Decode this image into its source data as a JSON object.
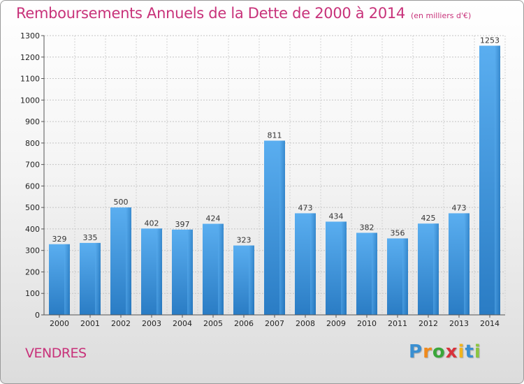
{
  "title": "Remboursements Annuels de la Dette de 2000 à 2014",
  "unit_note": "(en milliers d'€)",
  "commune": "VENDRES",
  "logo": {
    "letters": [
      "P",
      "r",
      "o",
      "x",
      "i",
      "t",
      "i"
    ],
    "colors": [
      "#3a8fd1",
      "#f08a1c",
      "#3aa63a",
      "#d8323c",
      "#f2b51c",
      "#3a8fd1",
      "#8cc63f"
    ]
  },
  "colors": {
    "bar_light": "#5aaef0",
    "bar_dark": "#1f6fb5",
    "title": "#c8327a"
  },
  "chart_data": {
    "type": "bar",
    "categories": [
      "2000",
      "2001",
      "2002",
      "2003",
      "2004",
      "2005",
      "2006",
      "2007",
      "2008",
      "2009",
      "2010",
      "2011",
      "2012",
      "2013",
      "2014"
    ],
    "values": [
      329,
      335,
      500,
      402,
      397,
      424,
      323,
      811,
      473,
      434,
      382,
      356,
      425,
      473,
      1253
    ],
    "ylim": [
      0,
      1300
    ],
    "yticks": [
      0,
      100,
      200,
      300,
      400,
      500,
      600,
      700,
      800,
      900,
      1000,
      1100,
      1200,
      1300
    ],
    "grid": true,
    "data_labels": true
  }
}
